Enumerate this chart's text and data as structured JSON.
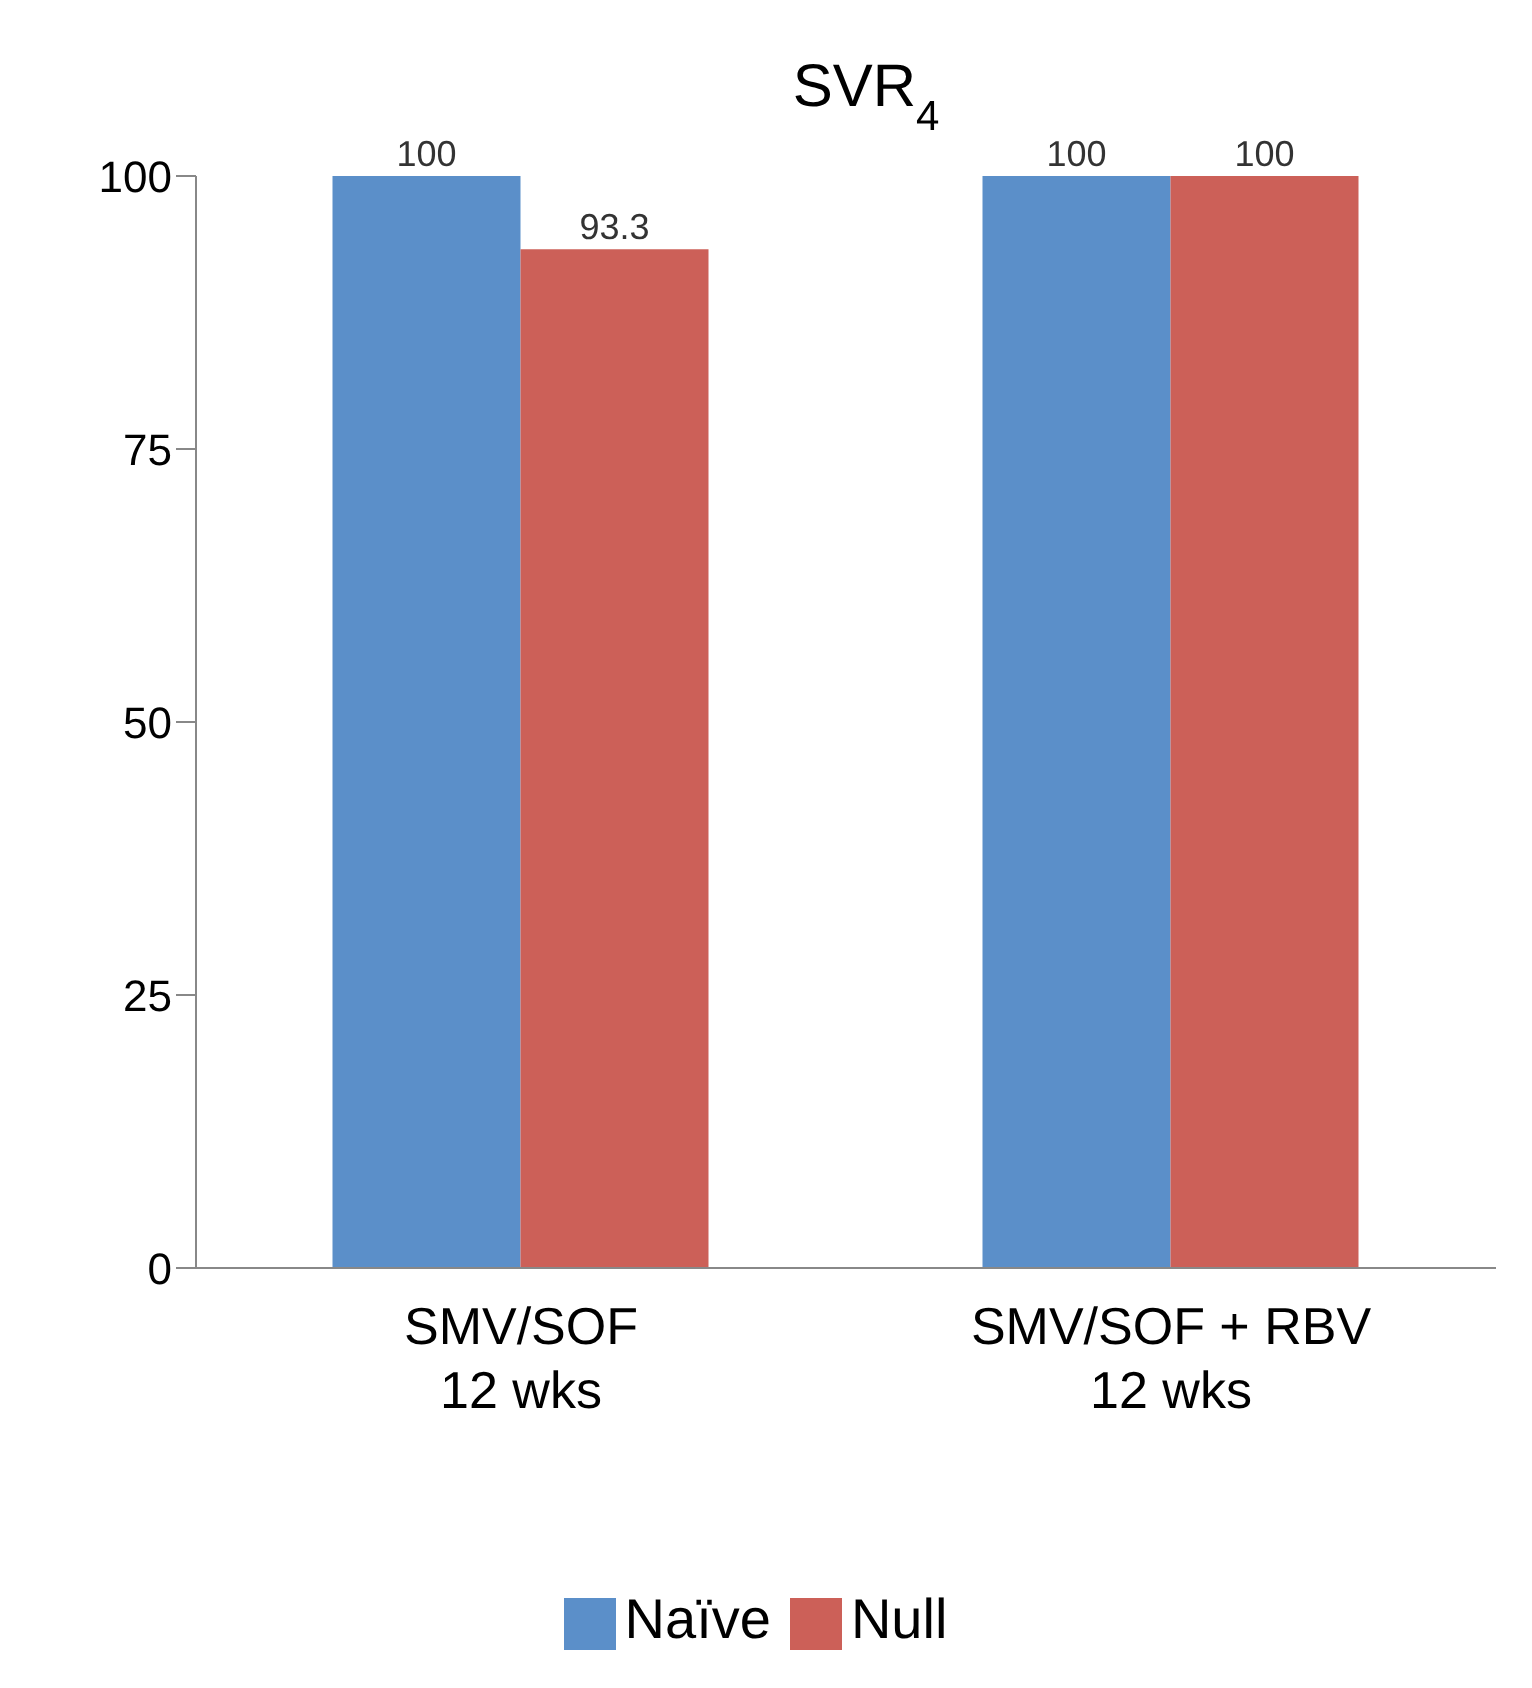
{
  "chart_data": {
    "type": "bar",
    "title": "SVR$_{4}$",
    "categories": [
      "SMV/SOF\n12 wks",
      "SMV/SOF + RBV\n12 wks"
    ],
    "series": [
      {
        "name": "Naïve",
        "color": "#5b8fc9",
        "values": [
          100,
          100
        ]
      },
      {
        "name": "Null",
        "color": "#cc6058",
        "values": [
          93.3,
          100
        ]
      }
    ],
    "ylim": [
      0,
      100
    ],
    "yticks": [
      0,
      25,
      50,
      75,
      100
    ],
    "grid": false,
    "legend": "bottom",
    "data_labels": true
  }
}
